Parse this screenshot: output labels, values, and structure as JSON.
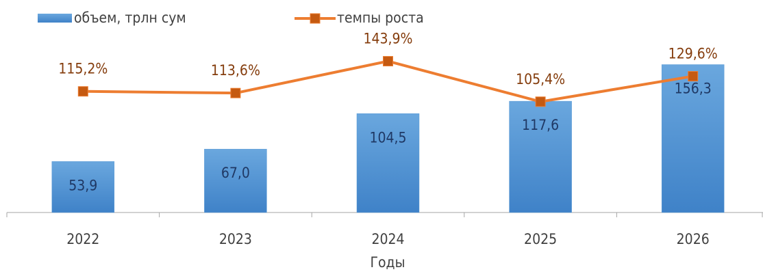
{
  "chart_data": {
    "type": "bar",
    "x_label": "Годы",
    "categories": [
      "2022",
      "2023",
      "2024",
      "2025",
      "2026"
    ],
    "ylim": [
      0,
      200
    ],
    "y2lim": [
      0,
      180
    ],
    "legend": "top",
    "series": [
      {
        "name": "объем, трлн сум",
        "type": "bar",
        "color": "#5b9bd5",
        "label_color": "#1f3864",
        "values": [
          53.9,
          67.0,
          104.5,
          117.6,
          156.3
        ],
        "value_labels": [
          "53,9",
          "67,0",
          "104,5",
          "117,6",
          "156,3"
        ]
      },
      {
        "name": "темпы роста",
        "type": "line",
        "axis": "y2",
        "color": "#ed7d31",
        "marker_color": "#c55a11",
        "label_color": "#843c0c",
        "values": [
          115.2,
          113.6,
          143.9,
          105.4,
          129.6
        ],
        "value_labels": [
          "115,2%",
          "113,6%",
          "143,9%",
          "105,4%",
          "129,6%"
        ]
      }
    ]
  }
}
